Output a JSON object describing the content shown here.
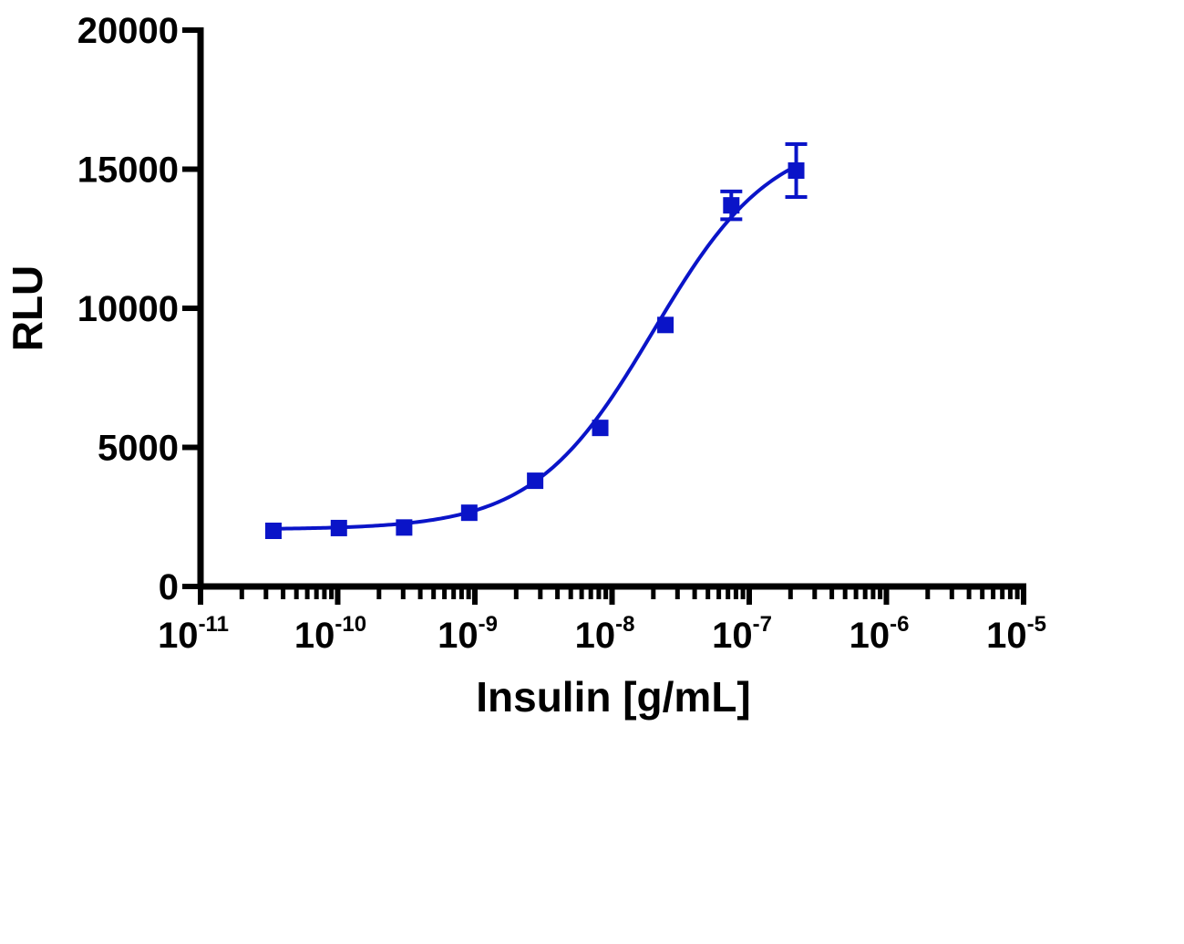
{
  "chart_data": {
    "type": "scatter",
    "xscale": "log",
    "xlabel": "Insulin [g/mL]",
    "ylabel": "RLU",
    "xlim": [
      1e-11,
      1e-05
    ],
    "ylim": [
      0,
      20000
    ],
    "x_ticks": [
      {
        "base": "10",
        "exp": "-11"
      },
      {
        "base": "10",
        "exp": "-10"
      },
      {
        "base": "10",
        "exp": "-9"
      },
      {
        "base": "10",
        "exp": "-8"
      },
      {
        "base": "10",
        "exp": "-7"
      },
      {
        "base": "10",
        "exp": "-6"
      },
      {
        "base": "10",
        "exp": "-5"
      }
    ],
    "y_ticks": [
      "0",
      "5000",
      "10000",
      "15000",
      "20000"
    ],
    "grid": false,
    "series": [
      {
        "color": "#0a14c8",
        "marker": "square",
        "x": [
          3.4e-11,
          1.02e-10,
          3.05e-10,
          9.1e-10,
          2.75e-09,
          8.2e-09,
          2.45e-08,
          7.4e-08,
          2.2e-07
        ],
        "y": [
          2000,
          2100,
          2120,
          2650,
          3800,
          5700,
          9400,
          13700,
          14950
        ],
        "error": [
          0,
          0,
          0,
          0,
          0,
          0,
          0,
          500,
          950
        ]
      }
    ],
    "fit": {
      "color": "#0a14c8",
      "model": "four-parameter logistic",
      "bottom": 2050,
      "top": 16300,
      "logEC50": -7.7,
      "hill": 1.0
    }
  }
}
